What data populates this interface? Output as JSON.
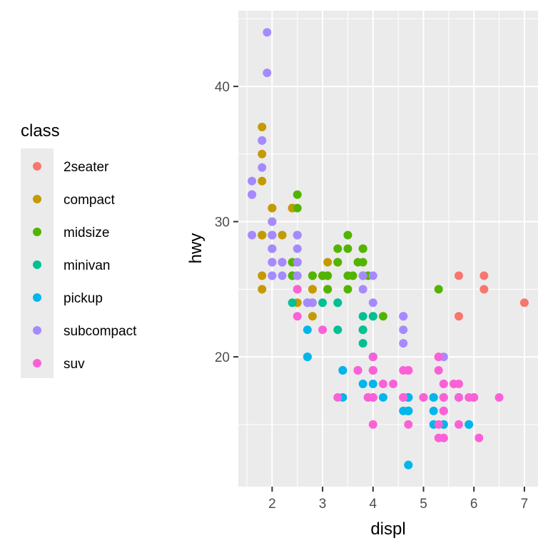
{
  "chart_data": {
    "type": "scatter",
    "xlabel": "displ",
    "ylabel": "hwy",
    "xlim": [
      1.33,
      7.27
    ],
    "ylim": [
      10.4,
      45.6
    ],
    "x_ticks": [
      2,
      3,
      4,
      5,
      6,
      7
    ],
    "y_ticks": [
      20,
      30,
      40
    ],
    "grid": true,
    "legend": {
      "title": "class",
      "placement": "left"
    },
    "series": [
      {
        "name": "2seater",
        "color": "#F8766D",
        "points": [
          [
            5.7,
            26
          ],
          [
            5.7,
            23
          ],
          [
            6.2,
            26
          ],
          [
            6.2,
            25
          ],
          [
            7.0,
            24
          ]
        ]
      },
      {
        "name": "compact",
        "color": "#C49A00",
        "points": [
          [
            1.8,
            29
          ],
          [
            1.8,
            29
          ],
          [
            2.0,
            31
          ],
          [
            2.0,
            30
          ],
          [
            2.8,
            26
          ],
          [
            2.8,
            26
          ],
          [
            3.1,
            27
          ],
          [
            1.8,
            26
          ],
          [
            1.8,
            25
          ],
          [
            2.0,
            28
          ],
          [
            2.0,
            27
          ],
          [
            2.8,
            25
          ],
          [
            2.8,
            25
          ],
          [
            3.1,
            25
          ],
          [
            3.1,
            25
          ],
          [
            2.2,
            27
          ],
          [
            2.2,
            29
          ],
          [
            2.4,
            31
          ],
          [
            2.4,
            31
          ],
          [
            3.0,
            26
          ],
          [
            3.0,
            26
          ],
          [
            3.3,
            27
          ],
          [
            1.8,
            37
          ],
          [
            1.8,
            35
          ],
          [
            1.8,
            29
          ],
          [
            1.8,
            33
          ],
          [
            2.0,
            29
          ],
          [
            2.0,
            29
          ],
          [
            2.5,
            27
          ],
          [
            2.5,
            25
          ],
          [
            2.4,
            27
          ],
          [
            2.4,
            31
          ],
          [
            2.8,
            24
          ],
          [
            2.8,
            23
          ],
          [
            2.5,
            24
          ],
          [
            2.0,
            31
          ]
        ]
      },
      {
        "name": "midsize",
        "color": "#53B400",
        "points": [
          [
            2.8,
            26
          ],
          [
            3.1,
            25
          ],
          [
            4.2,
            23
          ],
          [
            2.4,
            26
          ],
          [
            2.4,
            27
          ],
          [
            3.1,
            26
          ],
          [
            3.5,
            29
          ],
          [
            3.6,
            26
          ],
          [
            2.4,
            26
          ],
          [
            3.0,
            26
          ],
          [
            3.3,
            27
          ],
          [
            3.8,
            27
          ],
          [
            3.8,
            26
          ],
          [
            3.8,
            28
          ],
          [
            5.3,
            25
          ],
          [
            2.5,
            31
          ],
          [
            2.5,
            32
          ],
          [
            2.5,
            29
          ],
          [
            3.3,
            28
          ],
          [
            3.5,
            28
          ],
          [
            3.5,
            26
          ],
          [
            2.5,
            27
          ],
          [
            3.0,
            26
          ],
          [
            3.5,
            25
          ],
          [
            3.7,
            27
          ],
          [
            3.9,
            26
          ],
          [
            3.1,
            26
          ],
          [
            3.8,
            28
          ],
          [
            4.0,
            23
          ],
          [
            3.8,
            22
          ]
        ]
      },
      {
        "name": "minivan",
        "color": "#00C094",
        "points": [
          [
            2.4,
            24
          ],
          [
            3.0,
            24
          ],
          [
            3.3,
            22
          ],
          [
            3.3,
            24
          ],
          [
            3.8,
            22
          ],
          [
            3.8,
            21
          ],
          [
            3.8,
            23
          ],
          [
            4.0,
            23
          ],
          [
            3.3,
            24
          ],
          [
            2.7,
            24
          ]
        ]
      },
      {
        "name": "pickup",
        "color": "#00B6EB",
        "points": [
          [
            2.7,
            22
          ],
          [
            2.7,
            20
          ],
          [
            3.4,
            19
          ],
          [
            3.4,
            17
          ],
          [
            4.0,
            20
          ],
          [
            4.7,
            17
          ],
          [
            4.7,
            16
          ],
          [
            4.7,
            16
          ],
          [
            5.2,
            16
          ],
          [
            5.2,
            15
          ],
          [
            3.9,
            17
          ],
          [
            4.7,
            17
          ],
          [
            4.7,
            17
          ],
          [
            4.7,
            16
          ],
          [
            5.2,
            17
          ],
          [
            5.7,
            17
          ],
          [
            5.9,
            15
          ],
          [
            4.7,
            17
          ],
          [
            4.7,
            12
          ],
          [
            4.7,
            12
          ],
          [
            4.7,
            16
          ],
          [
            4.7,
            16
          ],
          [
            5.2,
            17
          ],
          [
            5.2,
            17
          ],
          [
            5.7,
            17
          ],
          [
            5.9,
            15
          ],
          [
            4.6,
            17
          ],
          [
            5.4,
            15
          ],
          [
            5.4,
            15
          ],
          [
            2.7,
            20
          ],
          [
            3.4,
            19
          ],
          [
            4.0,
            20
          ],
          [
            4.0,
            19
          ],
          [
            4.0,
            18
          ],
          [
            4.0,
            17
          ],
          [
            4.2,
            17
          ],
          [
            3.8,
            18
          ],
          [
            4.6,
            16
          ],
          [
            5.4,
            17
          ],
          [
            5.4,
            16
          ]
        ]
      },
      {
        "name": "subcompact",
        "color": "#A58AFF",
        "points": [
          [
            3.8,
            26
          ],
          [
            3.8,
            25
          ],
          [
            4.0,
            26
          ],
          [
            4.0,
            24
          ],
          [
            4.6,
            21
          ],
          [
            4.6,
            22
          ],
          [
            4.6,
            23
          ],
          [
            4.6,
            23
          ],
          [
            5.4,
            20
          ],
          [
            1.6,
            33
          ],
          [
            1.6,
            32
          ],
          [
            1.6,
            32
          ],
          [
            1.6,
            29
          ],
          [
            1.6,
            32
          ],
          [
            1.8,
            34
          ],
          [
            1.8,
            36
          ],
          [
            1.8,
            36
          ],
          [
            2.0,
            29
          ],
          [
            2.0,
            26
          ],
          [
            2.0,
            27
          ],
          [
            2.0,
            30
          ],
          [
            2.5,
            29
          ],
          [
            2.5,
            27
          ],
          [
            2.2,
            26
          ],
          [
            2.2,
            27
          ],
          [
            2.5,
            26
          ],
          [
            2.5,
            26
          ],
          [
            2.7,
            24
          ],
          [
            1.9,
            44
          ],
          [
            1.9,
            41
          ],
          [
            2.0,
            29
          ],
          [
            2.0,
            26
          ],
          [
            2.5,
            28
          ],
          [
            2.8,
            24
          ],
          [
            2.0,
            28
          ]
        ]
      },
      {
        "name": "suv",
        "color": "#FB61D7",
        "points": [
          [
            5.3,
            20
          ],
          [
            5.3,
            15
          ],
          [
            5.3,
            20
          ],
          [
            5.7,
            17
          ],
          [
            6.0,
            17
          ],
          [
            5.7,
            18
          ],
          [
            6.5,
            17
          ],
          [
            4.7,
            19
          ],
          [
            5.9,
            17
          ],
          [
            6.0,
            17
          ],
          [
            4.0,
            17
          ],
          [
            4.0,
            19
          ],
          [
            4.6,
            19
          ],
          [
            5.0,
            17
          ],
          [
            4.2,
            18
          ],
          [
            4.4,
            18
          ],
          [
            4.6,
            17
          ],
          [
            5.4,
            18
          ],
          [
            5.4,
            17
          ],
          [
            5.4,
            14
          ],
          [
            5.4,
            16
          ],
          [
            5.4,
            18
          ],
          [
            4.0,
            17
          ],
          [
            4.0,
            19
          ],
          [
            4.6,
            17
          ],
          [
            5.0,
            17
          ],
          [
            3.3,
            17
          ],
          [
            3.7,
            19
          ],
          [
            4.7,
            19
          ],
          [
            4.7,
            19
          ],
          [
            4.7,
            19
          ],
          [
            5.6,
            18
          ],
          [
            3.0,
            22
          ],
          [
            4.0,
            15
          ],
          [
            4.7,
            15
          ],
          [
            5.3,
            14
          ],
          [
            5.7,
            15
          ],
          [
            6.1,
            14
          ],
          [
            5.3,
            19
          ],
          [
            4.6,
            17
          ],
          [
            4.0,
            20
          ],
          [
            3.9,
            17
          ],
          [
            3.7,
            19
          ],
          [
            2.5,
            23
          ],
          [
            2.5,
            25
          ]
        ]
      }
    ]
  }
}
